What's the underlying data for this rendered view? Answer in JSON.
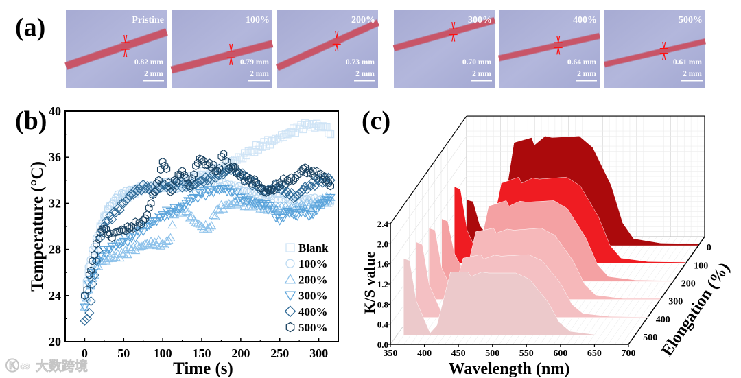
{
  "panel_labels": {
    "a": "(a)",
    "b": "(b)",
    "c": "(c)"
  },
  "photos": [
    {
      "label": "Pristine",
      "diameter": "0.82 mm",
      "scale": "2 mm",
      "rod_left": 0.72,
      "rod_right": 0.28
    },
    {
      "label": "100%",
      "diameter": "0.79 mm",
      "scale": "2 mm",
      "rod_left": 0.77,
      "rod_right": 0.43
    },
    {
      "label": "200%",
      "diameter": "0.73 mm",
      "scale": "2 mm",
      "rod_left": 0.74,
      "rod_right": 0.16
    },
    {
      "label": "300%",
      "diameter": "0.70 mm",
      "scale": "2 mm",
      "rod_left": 0.49,
      "rod_right": 0.13
    },
    {
      "label": "400%",
      "diameter": "0.64 mm",
      "scale": "2 mm",
      "rod_left": 0.62,
      "rod_right": 0.33
    },
    {
      "label": "500%",
      "diameter": "0.61 mm",
      "scale": "2 mm",
      "rod_left": 0.7,
      "rod_right": 0.4
    }
  ],
  "watermark": "大数跨境",
  "chart_data": [
    {
      "type": "scatter",
      "panel": "b",
      "xlabel": "Time (s)",
      "ylabel": "Temperature (°C)",
      "xlim": [
        -25,
        325
      ],
      "ylim": [
        20,
        40
      ],
      "xticks": [
        "0",
        "50",
        "100",
        "150",
        "200",
        "250",
        "300"
      ],
      "yticks": [
        "20",
        "24",
        "28",
        "32",
        "36",
        "40"
      ],
      "legend_position": "bottom-right",
      "series": [
        {
          "name": "Blank",
          "marker": "square",
          "color": "#cfe4f6",
          "x": [
            0,
            5,
            10,
            15,
            20,
            30,
            40,
            50,
            60,
            75,
            90,
            100,
            115,
            125,
            140,
            150,
            165,
            175,
            185,
            200,
            215,
            225,
            240,
            250,
            265,
            275,
            285,
            300,
            310,
            315
          ],
          "y": [
            24,
            26,
            27.5,
            28.8,
            30,
            31.5,
            32.2,
            32.5,
            32.9,
            33.3,
            33.4,
            33.5,
            33.8,
            34,
            34.3,
            34.5,
            34.8,
            35,
            35.5,
            36,
            36.6,
            37,
            37.4,
            37.7,
            38.2,
            38.5,
            38.8,
            38.7,
            38.6,
            38
          ]
        },
        {
          "name": "100%",
          "marker": "circle",
          "color": "#bcdaf2",
          "x": [
            0,
            5,
            10,
            15,
            20,
            30,
            40,
            50,
            60,
            70,
            80,
            90,
            100,
            110,
            120,
            140,
            160,
            180,
            200,
            220,
            240,
            260,
            280,
            300,
            315
          ],
          "y": [
            24,
            26.5,
            28,
            29,
            30,
            31.5,
            32.5,
            32.8,
            33,
            33.2,
            33.4,
            33.5,
            33.8,
            33.5,
            33.3,
            33.6,
            34,
            33.6,
            33.2,
            32.8,
            32.6,
            32.5,
            32.4,
            32.3,
            32
          ]
        },
        {
          "name": "200%",
          "marker": "triangle-up",
          "color": "#8cc1ea",
          "x": [
            0,
            5,
            10,
            15,
            20,
            30,
            40,
            50,
            60,
            70,
            80,
            90,
            100,
            105,
            110,
            115,
            120,
            130,
            140,
            150,
            160,
            170,
            180,
            190,
            200,
            220,
            240,
            260,
            280,
            300,
            315
          ],
          "y": [
            23,
            24.5,
            25.5,
            26.5,
            27,
            27.2,
            27.3,
            27.6,
            28,
            28.2,
            28.5,
            28.6,
            28.5,
            28.7,
            29,
            31,
            31.5,
            31.3,
            30.5,
            30,
            29.9,
            31.5,
            31.8,
            32,
            32,
            31.8,
            31.6,
            31.5,
            31.8,
            32,
            32.5
          ]
        },
        {
          "name": "300%",
          "marker": "triangle-down",
          "color": "#5aa3da",
          "x": [
            0,
            5,
            10,
            20,
            30,
            40,
            50,
            60,
            70,
            80,
            90,
            100,
            110,
            120,
            130,
            140,
            150,
            160,
            170,
            180,
            190,
            200,
            210,
            220,
            230,
            240,
            250,
            260,
            270,
            280,
            290,
            300,
            315
          ],
          "y": [
            23,
            25,
            26,
            27.5,
            28,
            28.3,
            28.7,
            29,
            29.5,
            30,
            30.5,
            31,
            31.3,
            31.5,
            32,
            32.5,
            32.8,
            33,
            33.2,
            33.3,
            33,
            32.5,
            32.3,
            32,
            31.8,
            31.5,
            30.5,
            31.3,
            31,
            31.5,
            31,
            31.8,
            32.5
          ]
        },
        {
          "name": "400%",
          "marker": "diamond",
          "color": "#2d6996",
          "x": [
            0,
            3,
            6,
            10,
            15,
            20,
            25,
            30,
            40,
            50,
            60,
            70,
            80,
            90,
            100,
            110,
            120,
            130,
            140,
            150,
            160,
            170,
            180,
            190,
            200,
            210,
            220,
            230,
            240,
            250,
            260,
            270,
            280,
            290,
            300,
            315
          ],
          "y": [
            21.8,
            22,
            22.5,
            25,
            27,
            29,
            30,
            30.5,
            31.2,
            32,
            32.8,
            33.3,
            33.5,
            33,
            33.6,
            33.3,
            33.8,
            33.4,
            33.6,
            34,
            34.2,
            34.5,
            34.8,
            35,
            34.5,
            34,
            33.5,
            33,
            33.3,
            33.5,
            33,
            32.5,
            33.2,
            33.5,
            34,
            34
          ]
        },
        {
          "name": "500%",
          "marker": "hexagon",
          "color": "#18405f",
          "x": [
            0,
            3,
            6,
            10,
            15,
            20,
            25,
            30,
            35,
            40,
            50,
            60,
            70,
            75,
            80,
            85,
            90,
            95,
            100,
            105,
            110,
            120,
            125,
            135,
            140,
            145,
            150,
            155,
            160,
            170,
            178,
            185,
            190,
            200,
            210,
            220,
            230,
            240,
            250,
            260,
            270,
            280,
            290,
            300,
            310,
            315
          ],
          "y": [
            24,
            24.5,
            25.8,
            27,
            28.5,
            29.5,
            29.8,
            29.3,
            29,
            29.5,
            29.7,
            30,
            30.3,
            30.5,
            31,
            32,
            33,
            34,
            35.6,
            35,
            33,
            34.5,
            34.8,
            33.5,
            34.5,
            35.5,
            35.8,
            35.3,
            35.5,
            34.8,
            36.3,
            35,
            35.2,
            34.3,
            34,
            33.8,
            33,
            33.2,
            33.8,
            34,
            34.2,
            35,
            34.6,
            34.5,
            34,
            33.5
          ]
        }
      ]
    },
    {
      "type": "area",
      "panel": "c",
      "subtype": "3d-waterfall",
      "xlabel": "Wavelength (nm)",
      "ylabel": "K/S value",
      "zlabel": "Elongation (%)",
      "xlim": [
        350,
        700
      ],
      "ylim": [
        0,
        2.4
      ],
      "xticks": [
        "350",
        "400",
        "450",
        "500",
        "550",
        "600",
        "650",
        "700"
      ],
      "yticks": [
        "0.0",
        "0.4",
        "0.8",
        "1.2",
        "1.6",
        "2.0",
        "2.4"
      ],
      "zticks": [
        "0",
        "100",
        "200",
        "300",
        "400",
        "500"
      ],
      "x": [
        360,
        369,
        379,
        399,
        409,
        429,
        455,
        459,
        475,
        485,
        525,
        545,
        572,
        589,
        605,
        645,
        700
      ],
      "series": [
        {
          "name": "0",
          "color": "#ab0a0c",
          "y": [
            0.91,
            0.88,
            0.4,
            0.05,
            0.3,
            2.05,
            2.15,
            2.0,
            2.18,
            2.15,
            2.18,
            1.95,
            1.2,
            0.45,
            0.14,
            0.05,
            0.04
          ]
        },
        {
          "name": "100",
          "color": "#ef1c22",
          "y": [
            1.53,
            1.48,
            0.66,
            0.05,
            0.25,
            1.6,
            1.72,
            1.6,
            1.7,
            1.68,
            1.72,
            1.55,
            0.93,
            0.36,
            0.11,
            0.04,
            0.03
          ]
        },
        {
          "name": "200",
          "color": "#f4a1a3",
          "y": [
            1.25,
            1.2,
            0.55,
            0.05,
            0.22,
            1.5,
            1.61,
            1.5,
            1.6,
            1.58,
            1.61,
            1.45,
            0.87,
            0.34,
            0.1,
            0.03,
            0.02
          ]
        },
        {
          "name": "300",
          "color": "#f6b8ba",
          "y": [
            1.42,
            1.38,
            0.62,
            0.05,
            0.2,
            1.35,
            1.42,
            1.32,
            1.4,
            1.38,
            1.42,
            1.28,
            0.77,
            0.3,
            0.09,
            0.02,
            0.02
          ]
        },
        {
          "name": "400",
          "color": "#f4c0c3",
          "y": [
            1.5,
            1.45,
            0.65,
            0.05,
            0.2,
            1.18,
            1.25,
            1.16,
            1.24,
            1.22,
            1.25,
            1.13,
            0.68,
            0.26,
            0.08,
            0.02,
            0.01
          ]
        },
        {
          "name": "500",
          "color": "#ecc9cb",
          "y": [
            1.53,
            1.49,
            0.67,
            0.05,
            0.2,
            1.26,
            1.26,
            1.17,
            1.26,
            1.24,
            1.24,
            1.12,
            0.67,
            0.26,
            0.08,
            0.01,
            0.0
          ]
        }
      ]
    }
  ]
}
